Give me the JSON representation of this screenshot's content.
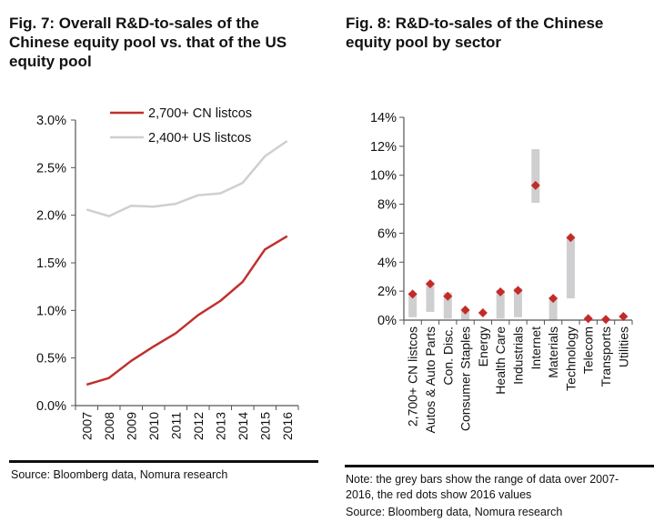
{
  "left": {
    "title_lines": [
      "Fig. 7: Overall R&D-to-sales of the",
      "Chinese equity pool vs. that of the US",
      "equity pool"
    ],
    "source": "Source: Bloomberg data, Nomura research"
  },
  "right": {
    "title_lines": [
      "Fig. 8: R&D-to-sales of the Chinese",
      "equity pool by sector"
    ],
    "note_lines": [
      "Note: the grey bars show the range of data over 2007-",
      "2016, the red dots show 2016 values"
    ],
    "source": "Source: Bloomberg data, Nomura research"
  },
  "colors": {
    "red": "#c0302e",
    "grey": "#cfcfd1",
    "axis": "#555555",
    "dot": "#c42a27"
  },
  "chart_data": [
    {
      "type": "line",
      "title": "Fig. 7: Overall R&D-to-sales of the Chinese equity pool vs. that of the US equity pool",
      "categories": [
        "2007",
        "2008",
        "2009",
        "2010",
        "2011",
        "2012",
        "2013",
        "2014",
        "2015",
        "2016"
      ],
      "series": [
        {
          "name": "2,700+ CN listcos",
          "color": "#c0302e",
          "values": [
            0.22,
            0.29,
            0.47,
            0.62,
            0.76,
            0.95,
            1.1,
            1.3,
            1.64,
            1.78
          ]
        },
        {
          "name": "2,400+ US listcos",
          "color": "#cfcfd1",
          "values": [
            2.06,
            1.99,
            2.1,
            2.09,
            2.12,
            2.21,
            2.23,
            2.34,
            2.62,
            2.78
          ]
        }
      ],
      "ylim": [
        0,
        3
      ],
      "yticks": [
        "0.0%",
        "0.5%",
        "1.0%",
        "1.5%",
        "2.0%",
        "2.5%",
        "3.0%"
      ],
      "ytick_values": [
        0,
        0.5,
        1,
        1.5,
        2,
        2.5,
        3
      ],
      "legend": "top-center",
      "grid": false
    },
    {
      "type": "bar",
      "title": "Fig. 8: R&D-to-sales of the Chinese equity pool by sector",
      "categories": [
        "2,700+ CN listcos",
        "Autos & Auto Parts",
        "Con. Disc.",
        "Consumer Staples",
        "Energy",
        "Health Care",
        "Industrials",
        "Internet",
        "Materials",
        "Technology",
        "Telecom",
        "Transports",
        "Utilities"
      ],
      "range_low": [
        0.2,
        0.57,
        0.1,
        0.0,
        0.45,
        0.1,
        0.2,
        8.1,
        0.0,
        1.5,
        0.0,
        0.0,
        0.15
      ],
      "range_high": [
        1.9,
        2.6,
        1.9,
        0.7,
        0.55,
        2.1,
        2.2,
        11.8,
        1.6,
        5.7,
        0.15,
        0.1,
        0.3
      ],
      "values_2016": [
        1.8,
        2.5,
        1.65,
        0.7,
        0.5,
        1.95,
        2.05,
        9.3,
        1.5,
        5.7,
        0.1,
        0.05,
        0.25
      ],
      "ylim": [
        0,
        14
      ],
      "yticks": [
        "0%",
        "2%",
        "4%",
        "6%",
        "8%",
        "10%",
        "12%",
        "14%"
      ],
      "ytick_values": [
        0,
        2,
        4,
        6,
        8,
        10,
        12,
        14
      ],
      "grid": false
    }
  ]
}
